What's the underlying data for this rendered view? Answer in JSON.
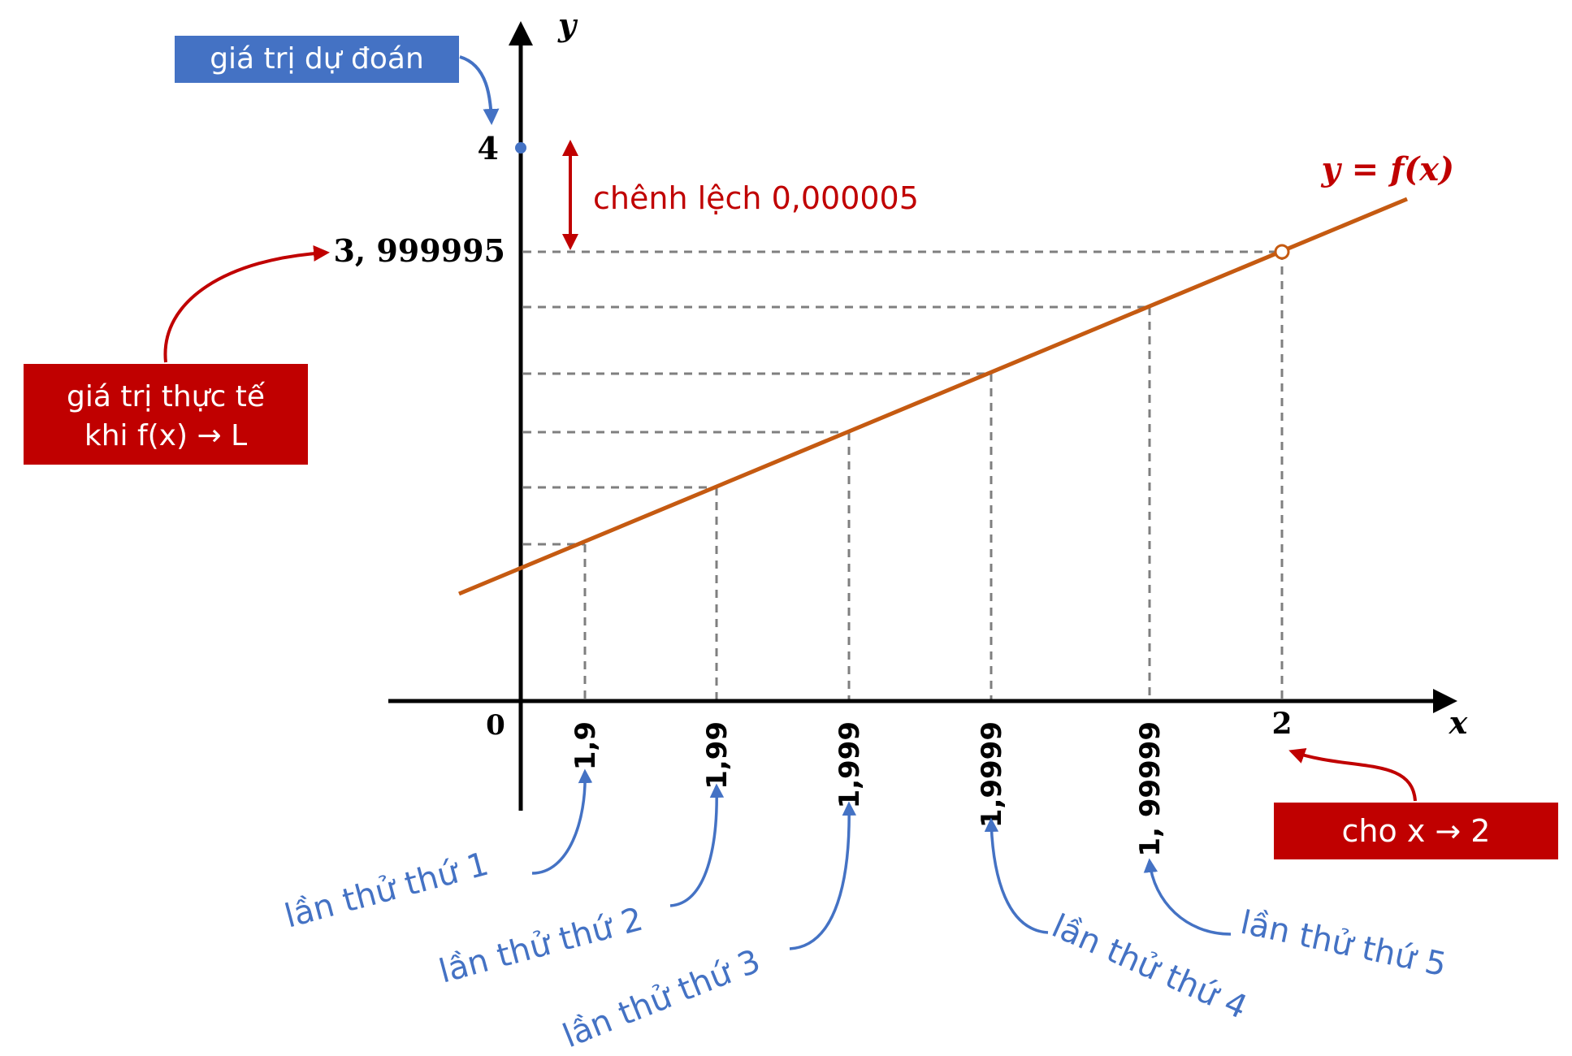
{
  "colors": {
    "axis": "#000000",
    "curve": "#c55a11",
    "guide": "#7f7f7f",
    "blue": "#4472c4",
    "red": "#c00000",
    "white": "#ffffff"
  },
  "axes": {
    "x_label": "x",
    "y_label": "y",
    "origin_label": "0"
  },
  "curve_label": "y = f(x)",
  "y_ticks": {
    "predicted": "4",
    "actual": "3, 999995"
  },
  "x_ticks": [
    "1,9",
    "1,99",
    "1,999",
    "1,9999",
    "1, 99999"
  ],
  "x_limit_label": "2",
  "boxes": {
    "predicted": "giá trị dự đoán",
    "actual_line1": "giá trị thực tế",
    "actual_line2": "khi f(x) → L",
    "limit": "cho x → 2"
  },
  "difference_label": "chênh lệch 0,000005",
  "attempts": [
    "lần thử thứ 1",
    "lần thử thứ 2",
    "lần thử thứ 3",
    "lần thử thứ 4",
    "lần thử thứ 5"
  ],
  "icons": {
    "arrow": "arrow-icon",
    "double_arrow": "double-arrow-icon",
    "point": "point-icon"
  }
}
